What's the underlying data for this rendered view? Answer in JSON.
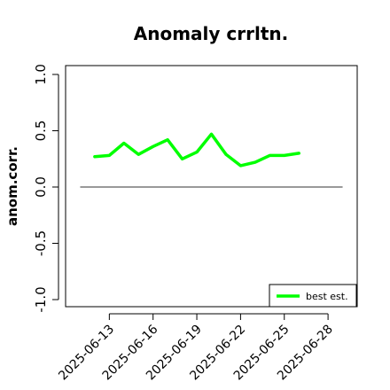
{
  "chart_data": {
    "type": "line",
    "title": "Anomaly crrltn.",
    "xlabel": "",
    "ylabel": "anom.corr.",
    "ylim": [
      -1.0,
      1.0
    ],
    "xlim": [
      "2025-06-10",
      "2025-06-30"
    ],
    "yticks": [
      "-1.0",
      "-0.5",
      "0.0",
      "0.5",
      "1.0"
    ],
    "xticks": [
      "2025-06-13",
      "2025-06-16",
      "2025-06-19",
      "2025-06-22",
      "2025-06-25",
      "2025-06-28"
    ],
    "highlight_tick": "2025-06-19",
    "highlight_color": "#228b22",
    "reference_line": 0.0,
    "reference_span": [
      "2025-06-11",
      "2025-06-29"
    ],
    "grid": false,
    "legend_position": "bottom-right",
    "series": [
      {
        "name": "best est.",
        "color": "#00ff00",
        "x": [
          "2025-06-12",
          "2025-06-13",
          "2025-06-14",
          "2025-06-15",
          "2025-06-16",
          "2025-06-17",
          "2025-06-18",
          "2025-06-19",
          "2025-06-20",
          "2025-06-21",
          "2025-06-22",
          "2025-06-23",
          "2025-06-24",
          "2025-06-25",
          "2025-06-26"
        ],
        "values": [
          0.27,
          0.28,
          0.39,
          0.29,
          0.36,
          0.42,
          0.25,
          0.31,
          0.47,
          0.29,
          0.19,
          0.22,
          0.28,
          0.28,
          0.3
        ]
      }
    ]
  }
}
